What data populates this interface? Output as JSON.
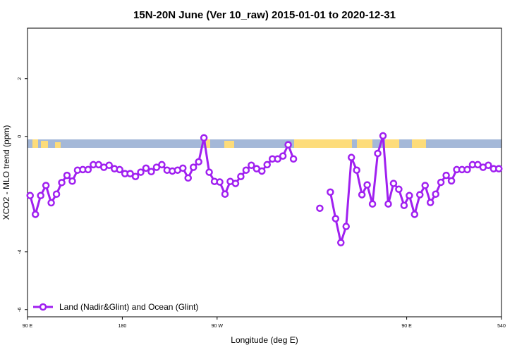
{
  "chart_data": {
    "type": "line",
    "title": "15N-20N June (Ver 10_raw)   2015-01-01 to 2020-12-31",
    "x_label": "Longitude (deg E)",
    "y_label": "XCO2 - MLO trend (ppm)",
    "xlim": [
      90,
      540
    ],
    "ylim": [
      -6.25,
      3.75
    ],
    "xticks": [
      {
        "value": 90,
        "label": "90 E"
      },
      180,
      {
        "value": 270,
        "label": "90 W"
      },
      {
        "value": 450,
        "label": "90 E"
      },
      540
    ],
    "yticks": [
      -6,
      -4,
      0,
      2
    ],
    "legend": "bottom-left",
    "x": [
      92.5,
      97.5,
      102.5,
      107.5,
      112.5,
      117.5,
      122.5,
      127.5,
      132.5,
      137.5,
      142.5,
      147.5,
      152.5,
      157.5,
      162.5,
      167.5,
      172.5,
      177.5,
      182.5,
      187.5,
      192.5,
      197.5,
      202.5,
      207.5,
      212.5,
      217.5,
      222.5,
      227.5,
      232.5,
      237.5,
      242.5,
      247.5,
      252.5,
      257.5,
      262.5,
      267.5,
      272.5,
      277.5,
      282.5,
      287.5,
      292.5,
      297.5,
      302.5,
      307.5,
      312.5,
      317.5,
      322.5,
      327.5,
      332.5,
      337.5,
      342.5,
      347.5,
      352.5,
      357.5,
      362.5,
      367.5,
      372.5,
      377.5,
      382.5,
      387.5,
      392.5,
      397.5,
      402.5,
      407.5,
      412.5,
      417.5,
      422.5,
      427.5,
      432.5,
      437.5,
      442.5,
      447.5,
      452.5,
      457.5,
      462.5,
      467.5,
      472.5,
      477.5,
      482.5,
      487.5,
      492.5,
      497.5,
      502.5,
      507.5,
      512.5,
      517.5,
      522.5,
      527.5,
      532.5,
      537.5
    ],
    "series": [
      {
        "name": "Land (Nadir&Glint) and Ocean (Glint)",
        "color": "#a020f0",
        "values": [
          -2.05,
          -2.7,
          -2.05,
          -1.7,
          -2.3,
          -2.0,
          -1.6,
          -1.35,
          -1.55,
          -1.17,
          -1.15,
          -1.15,
          -0.98,
          -0.98,
          -1.07,
          -1.0,
          -1.12,
          -1.15,
          -1.29,
          -1.29,
          -1.39,
          -1.24,
          -1.1,
          -1.22,
          -1.07,
          -0.98,
          -1.17,
          -1.2,
          -1.17,
          -1.1,
          -1.44,
          -1.07,
          -0.88,
          -0.05,
          -1.24,
          -1.56,
          -1.58,
          -2.0,
          -1.56,
          -1.63,
          -1.39,
          -1.17,
          -1.0,
          -1.12,
          -1.2,
          -0.98,
          -0.78,
          -0.78,
          -0.68,
          -0.29,
          -0.78,
          null,
          null,
          null,
          null,
          -2.49,
          null,
          -1.93,
          -2.85,
          -3.68,
          -3.12,
          -0.73,
          -1.17,
          -2.02,
          -1.68,
          -2.34,
          -0.59,
          0.02,
          -2.34,
          -1.63,
          -1.83,
          -2.39,
          -2.05,
          -2.7,
          -2.02,
          -1.7,
          -2.29,
          -2.0,
          -1.59,
          -1.35,
          -1.54,
          -1.15,
          -1.15,
          -1.15,
          -0.98,
          -0.98,
          -1.07,
          -1.0,
          -1.12,
          -1.12
        ]
      }
    ]
  }
}
